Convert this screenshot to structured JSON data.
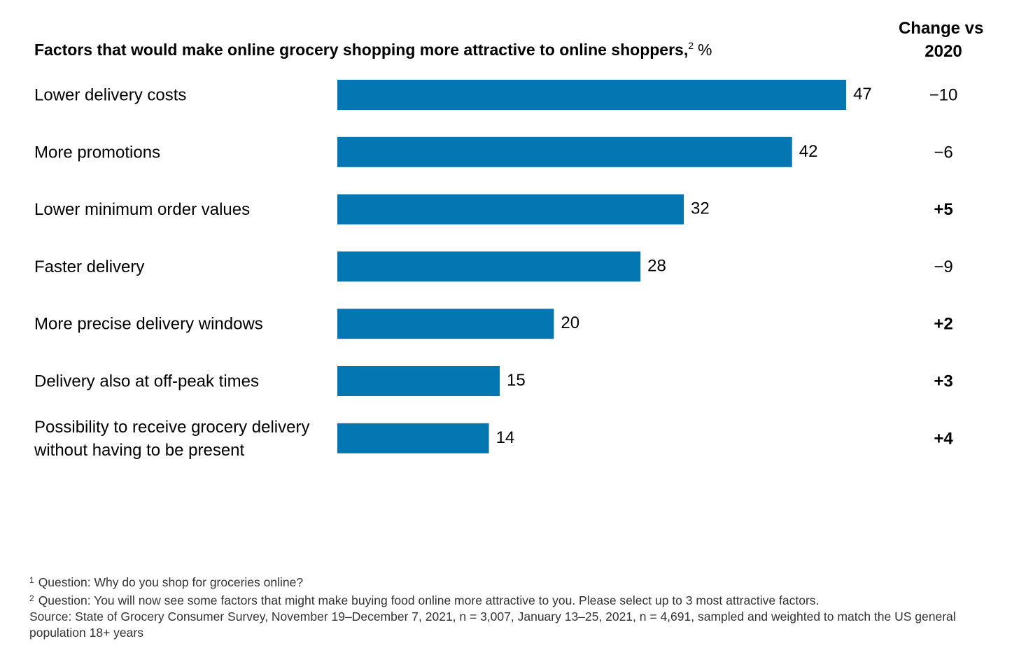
{
  "chart_data": {
    "type": "bar",
    "orientation": "horizontal",
    "title": "Factors that would make online grocery shopping more attractive to online shoppers,",
    "title_superscript": "2",
    "title_unit": "%",
    "change_column_header": [
      "Change vs",
      "2020"
    ],
    "categories": [
      [
        "Lower delivery costs"
      ],
      [
        "More promotions"
      ],
      [
        "Lower minimum order values"
      ],
      [
        "Faster delivery"
      ],
      [
        "More precise delivery windows"
      ],
      [
        "Delivery also at off-peak times"
      ],
      [
        "Possibility to receive grocery delivery",
        "without having to be present"
      ]
    ],
    "values": [
      47,
      42,
      32,
      28,
      20,
      15,
      14
    ],
    "changes": [
      "−10",
      "−6",
      "+5",
      "−9",
      "+2",
      "+3",
      "+4"
    ],
    "grid": false,
    "bar_color": "#0477b3"
  },
  "footnotes": [
    {
      "num": "1",
      "text": "Question: Why do you shop for groceries online?"
    },
    {
      "num": "2",
      "text": "Question: You will now see some factors that might make buying food online more attractive to you. Please select up to 3 most attractive factors."
    }
  ],
  "source": "Source: State of Grocery Consumer Survey, November 19–December 7, 2021, n = 3,007, January 13–25, 2021, n = 4,691, sampled and weighted to match the US general population 18+ years"
}
